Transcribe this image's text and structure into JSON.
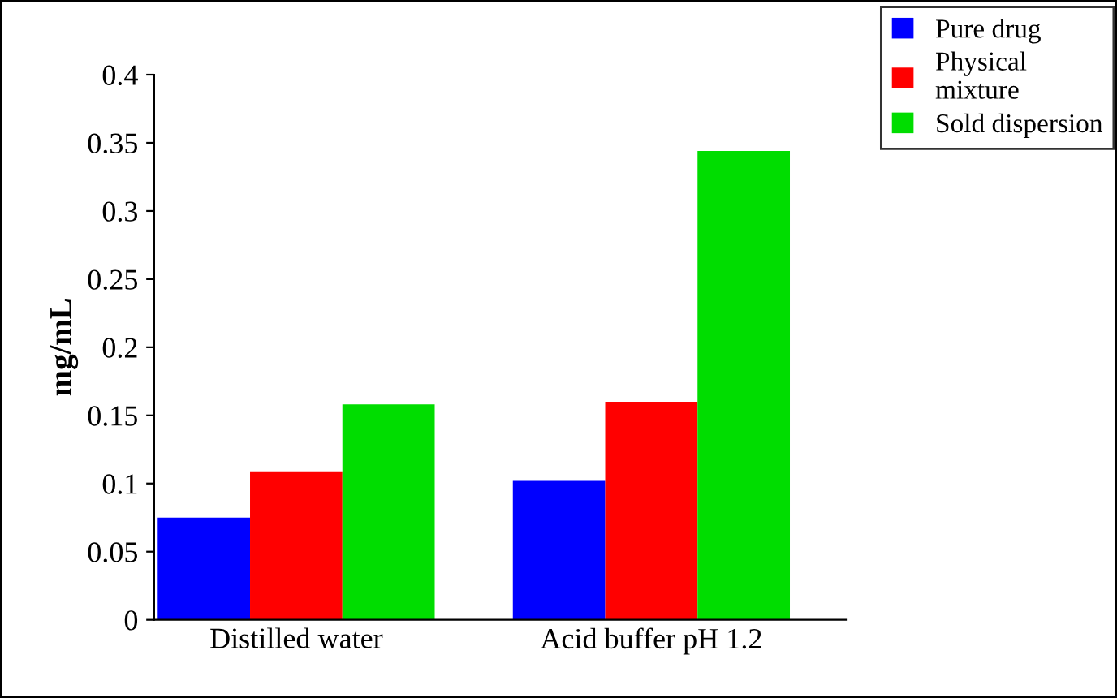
{
  "chart_data": {
    "type": "bar",
    "ylabel": "mg/mL",
    "categories": [
      "Distilled water",
      "Acid buffer pH 1.2"
    ],
    "series": [
      {
        "name": "Pure drug",
        "color": "#0000ff",
        "values": [
          0.075,
          0.102
        ]
      },
      {
        "name": "Physical\nmixture",
        "color": "#ff0000",
        "values": [
          0.109,
          0.16
        ]
      },
      {
        "name": "Sold dispersion",
        "color": "#00dd00",
        "values": [
          0.158,
          0.344
        ]
      }
    ],
    "ylim": [
      0,
      0.4
    ],
    "yticks": [
      {
        "value": 0,
        "label": "0"
      },
      0.05,
      0.1,
      0.15,
      0.2,
      0.25,
      0.3,
      0.35,
      0.4
    ],
    "grid": false,
    "legend": "top right"
  }
}
